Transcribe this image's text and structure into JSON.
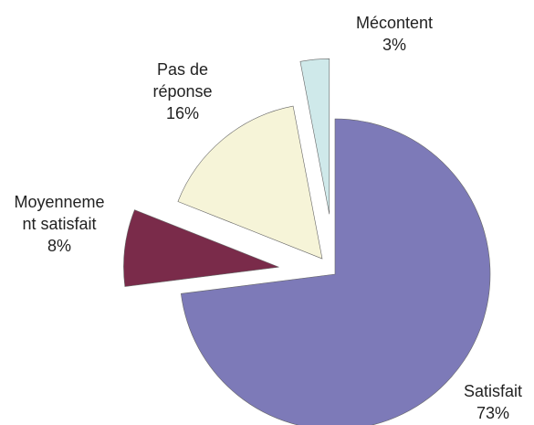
{
  "chart_data": {
    "type": "pie",
    "categories": [
      "Satisfait",
      "Moyennement satisfait",
      "Pas de réponse",
      "Mécontent"
    ],
    "values": [
      73,
      8,
      16,
      3
    ],
    "value_labels": [
      "73%",
      "8%",
      "16%",
      "3%"
    ],
    "colors": [
      "#7d7ab8",
      "#7a2b4a",
      "#f6f4d8",
      "#cfe9ea"
    ]
  }
}
